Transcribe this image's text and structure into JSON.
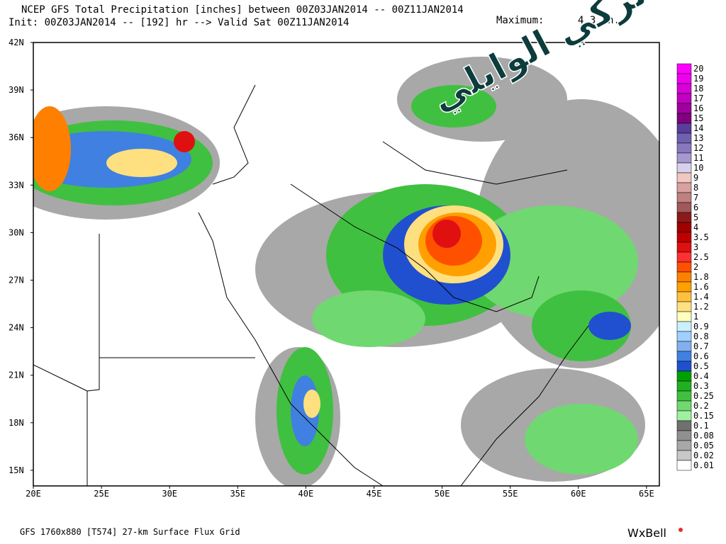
{
  "header": {
    "title_line1": "NCEP GFS Total Precipitation [inches] between 00Z03JAN2014 -- 00Z11JAN2014",
    "title_line2": "Init: 00Z03JAN2014 -- [192] hr --> Valid Sat 00Z11JAN2014",
    "maximum_label": "Maximum:",
    "maximum_value": "4.3 in."
  },
  "watermark": "تركي الوايلي",
  "map": {
    "lat_labels": [
      "42N",
      "39N",
      "36N",
      "33N",
      "30N",
      "27N",
      "24N",
      "21N",
      "18N",
      "15N"
    ],
    "lon_labels": [
      "20E",
      "25E",
      "30E",
      "35E",
      "40E",
      "45E",
      "50E",
      "55E",
      "60E",
      "65E"
    ]
  },
  "legend": {
    "levels": [
      {
        "label": "20",
        "color": "#ff00ff"
      },
      {
        "label": "19",
        "color": "#ee00ee"
      },
      {
        "label": "18",
        "color": "#d800d8"
      },
      {
        "label": "17",
        "color": "#c000c0"
      },
      {
        "label": "16",
        "color": "#a000a0"
      },
      {
        "label": "15",
        "color": "#800080"
      },
      {
        "label": "14",
        "color": "#5a3c9c"
      },
      {
        "label": "13",
        "color": "#7060b0"
      },
      {
        "label": "12",
        "color": "#8878c0"
      },
      {
        "label": "11",
        "color": "#a898d0"
      },
      {
        "label": "10",
        "color": "#d8d0ec"
      },
      {
        "label": "9",
        "color": "#f0c8c0"
      },
      {
        "label": "8",
        "color": "#d8a0a0"
      },
      {
        "label": "7",
        "color": "#c08080"
      },
      {
        "label": "6",
        "color": "#a05858"
      },
      {
        "label": "5",
        "color": "#8c1a1a"
      },
      {
        "label": "4",
        "color": "#a00000"
      },
      {
        "label": "3.5",
        "color": "#c00000"
      },
      {
        "label": "3",
        "color": "#e01010"
      },
      {
        "label": "2.5",
        "color": "#ff3030"
      },
      {
        "label": "2",
        "color": "#ff5000"
      },
      {
        "label": "1.8",
        "color": "#ff8000"
      },
      {
        "label": "1.6",
        "color": "#ffa000"
      },
      {
        "label": "1.4",
        "color": "#ffc040"
      },
      {
        "label": "1.2",
        "color": "#ffe080"
      },
      {
        "label": "1",
        "color": "#ffffc0"
      },
      {
        "label": "0.9",
        "color": "#c8f0ff"
      },
      {
        "label": "0.8",
        "color": "#a0d0ff"
      },
      {
        "label": "0.7",
        "color": "#80b0f0"
      },
      {
        "label": "0.6",
        "color": "#4080e0"
      },
      {
        "label": "0.5",
        "color": "#2050d0"
      },
      {
        "label": "0.4",
        "color": "#00a000"
      },
      {
        "label": "0.3",
        "color": "#20b020"
      },
      {
        "label": "0.25",
        "color": "#40c040"
      },
      {
        "label": "0.2",
        "color": "#70d870"
      },
      {
        "label": "0.15",
        "color": "#a0f0a0"
      },
      {
        "label": "0.1",
        "color": "#707070"
      },
      {
        "label": "0.08",
        "color": "#909090"
      },
      {
        "label": "0.05",
        "color": "#a8a8a8"
      },
      {
        "label": "0.02",
        "color": "#c8c8c8"
      },
      {
        "label": "0.01",
        "color": "#ffffff"
      }
    ]
  },
  "footer": {
    "grid_info": "GFS 1760x880 [T574] 27-km Surface Flux Grid",
    "brand": "WxBell"
  }
}
